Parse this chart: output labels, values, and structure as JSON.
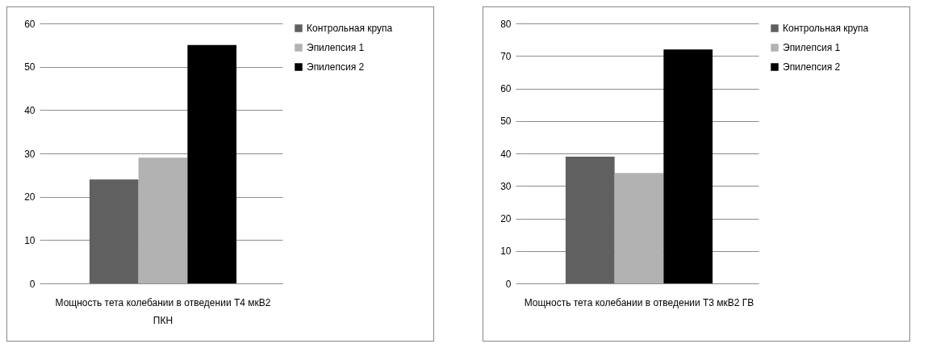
{
  "chart_data": [
    {
      "type": "bar",
      "categories": [
        "Мощность тета колебании в отведении Т4 мкВ2 ПКН"
      ],
      "series": [
        {
          "name": "Контрольная крупа",
          "color": "#606060",
          "values": [
            24
          ]
        },
        {
          "name": "Эпилепсия 1",
          "color": "#b2b2b2",
          "values": [
            29
          ]
        },
        {
          "name": "Эпилепсия 2",
          "color": "#000000",
          "values": [
            55
          ]
        }
      ],
      "ylim": [
        0,
        60
      ],
      "yticks": [
        0,
        10,
        20,
        30,
        40,
        50,
        60
      ],
      "grid": "y",
      "legend": "right"
    },
    {
      "type": "bar",
      "categories": [
        "Мощность тета колебании в отведении Т3 мкВ2 ГВ"
      ],
      "series": [
        {
          "name": "Контрольная крупа",
          "color": "#606060",
          "values": [
            39
          ]
        },
        {
          "name": "Эпилепсия 1",
          "color": "#b2b2b2",
          "values": [
            34
          ]
        },
        {
          "name": "Эпилепсия 2",
          "color": "#000000",
          "values": [
            72
          ]
        }
      ],
      "ylim": [
        0,
        80
      ],
      "yticks": [
        0,
        10,
        20,
        30,
        40,
        50,
        60,
        70,
        80
      ],
      "grid": "y",
      "legend": "right"
    }
  ]
}
